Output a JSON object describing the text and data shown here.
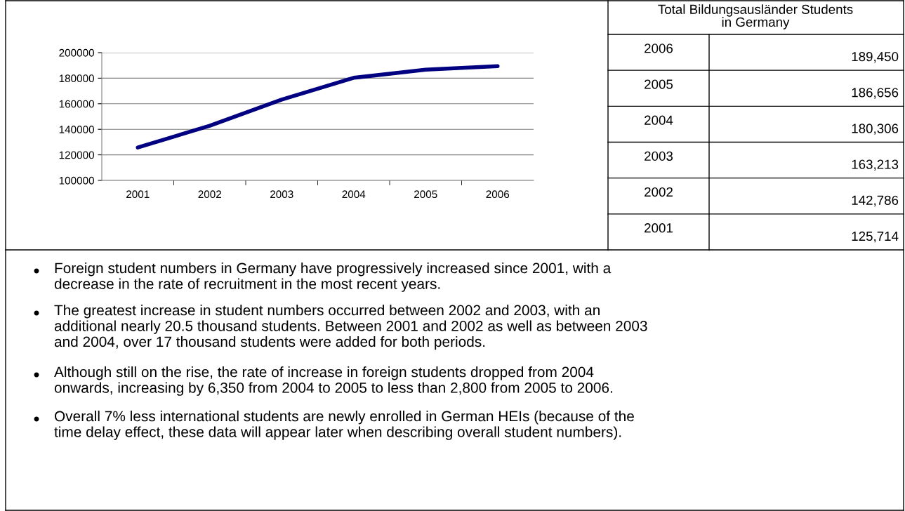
{
  "chart_data": {
    "type": "line",
    "title": "Total Bildungsausländer Students\nin Germany",
    "categories": [
      "2001",
      "2002",
      "2003",
      "2004",
      "2005",
      "2006"
    ],
    "series": [
      {
        "color": "#000080",
        "values": [
          125714,
          142786,
          163213,
          180306,
          186656,
          189450
        ]
      }
    ],
    "value_labels": [
      "125,714",
      "142,786",
      "163,213",
      "180,306",
      "186,656",
      "189,450"
    ],
    "ylim": [
      100000,
      200000
    ],
    "yticks": [
      100000,
      120000,
      140000,
      160000,
      180000,
      200000
    ],
    "grid": "y",
    "annotations": [
      "Foreign student numbers in Germany have progressively increased since 2001, with a\ndecrease in the rate of recruitment in the most recent years.",
      "The greatest increase in student numbers occurred between 2002 and 2003, with an\nadditional nearly 20.5 thousand students. Between 2001 and 2002 as well as between 2003\nand 2004, over 17 thousand students were added for both periods.",
      "Although still on the rise, the rate of increase in foreign students dropped from 2004\nonwards, increasing by 6,350 from 2004 to 2005 to less than 2,800 from 2005 to 2006.",
      "Overall 7% less international students are newly enrolled in German HEIs (because of the\ntime delay effect, these data will appear later when describing overall student numbers)."
    ]
  }
}
